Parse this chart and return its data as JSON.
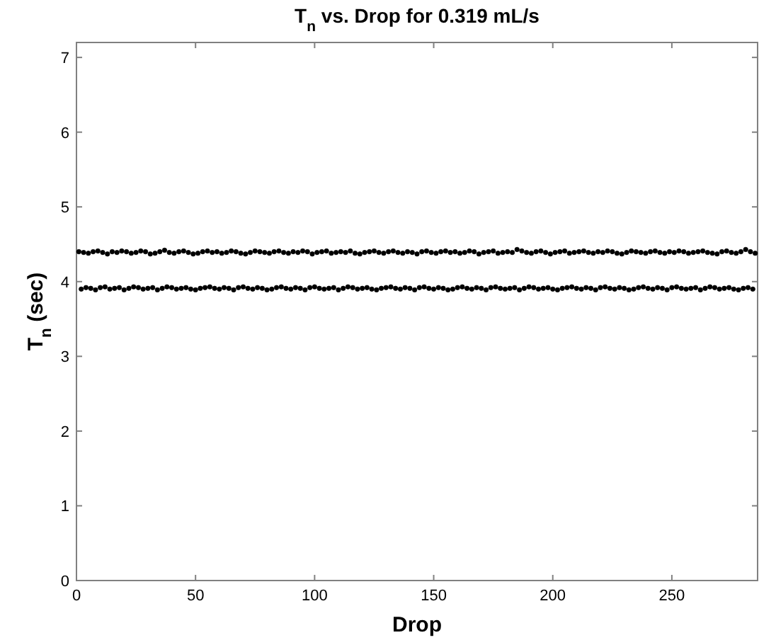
{
  "chart_data": {
    "type": "scatter",
    "title": "T$_{n}$ vs. Drop for 0.319 mL/s",
    "xlabel": "Drop",
    "ylabel": "T$_{n}$ (sec)",
    "xlim": [
      0,
      286
    ],
    "ylim": [
      0,
      7.2
    ],
    "xticks": [
      0,
      50,
      100,
      150,
      200,
      250
    ],
    "yticks": [
      0,
      1,
      2,
      3,
      4,
      5,
      6,
      7
    ],
    "marker": "circle",
    "grid": false,
    "series": [
      {
        "color": "#000000",
        "x": [
          1,
          3,
          5,
          7,
          9,
          11,
          13,
          15,
          17,
          19,
          21,
          23,
          25,
          27,
          29,
          31,
          33,
          35,
          37,
          39,
          41,
          43,
          45,
          47,
          49,
          51,
          53,
          55,
          57,
          59,
          61,
          63,
          65,
          67,
          69,
          71,
          73,
          75,
          77,
          79,
          81,
          83,
          85,
          87,
          89,
          91,
          93,
          95,
          97,
          99,
          101,
          103,
          105,
          107,
          109,
          111,
          113,
          115,
          117,
          119,
          121,
          123,
          125,
          127,
          129,
          131,
          133,
          135,
          137,
          139,
          141,
          143,
          145,
          147,
          149,
          151,
          153,
          155,
          157,
          159,
          161,
          163,
          165,
          167,
          169,
          171,
          173,
          175,
          177,
          179,
          181,
          183,
          185,
          187,
          189,
          191,
          193,
          195,
          197,
          199,
          201,
          203,
          205,
          207,
          209,
          211,
          213,
          215,
          217,
          219,
          221,
          223,
          225,
          227,
          229,
          231,
          233,
          235,
          237,
          239,
          241,
          243,
          245,
          247,
          249,
          251,
          253,
          255,
          257,
          259,
          261,
          263,
          265,
          267,
          269,
          271,
          273,
          275,
          277,
          279,
          281,
          283,
          285
        ],
        "values": [
          4.4,
          4.39,
          4.38,
          4.4,
          4.41,
          4.39,
          4.37,
          4.4,
          4.39,
          4.41,
          4.4,
          4.38,
          4.39,
          4.41,
          4.4,
          4.37,
          4.38,
          4.4,
          4.42,
          4.39,
          4.38,
          4.4,
          4.41,
          4.39,
          4.37,
          4.38,
          4.4,
          4.41,
          4.39,
          4.4,
          4.38,
          4.39,
          4.41,
          4.4,
          4.38,
          4.37,
          4.39,
          4.41,
          4.4,
          4.39,
          4.38,
          4.4,
          4.41,
          4.39,
          4.38,
          4.4,
          4.39,
          4.41,
          4.4,
          4.37,
          4.39,
          4.4,
          4.41,
          4.38,
          4.39,
          4.4,
          4.39,
          4.41,
          4.38,
          4.37,
          4.39,
          4.4,
          4.41,
          4.39,
          4.38,
          4.4,
          4.41,
          4.39,
          4.38,
          4.4,
          4.39,
          4.37,
          4.4,
          4.41,
          4.39,
          4.38,
          4.4,
          4.41,
          4.39,
          4.4,
          4.38,
          4.39,
          4.41,
          4.4,
          4.37,
          4.39,
          4.4,
          4.41,
          4.38,
          4.39,
          4.4,
          4.39,
          4.43,
          4.41,
          4.39,
          4.38,
          4.4,
          4.41,
          4.39,
          4.37,
          4.39,
          4.4,
          4.41,
          4.38,
          4.39,
          4.4,
          4.41,
          4.39,
          4.38,
          4.4,
          4.39,
          4.41,
          4.4,
          4.38,
          4.37,
          4.39,
          4.41,
          4.4,
          4.39,
          4.38,
          4.4,
          4.41,
          4.39,
          4.38,
          4.4,
          4.39,
          4.41,
          4.4,
          4.38,
          4.39,
          4.4,
          4.41,
          4.39,
          4.38,
          4.37,
          4.4,
          4.41,
          4.39,
          4.38,
          4.4,
          4.43,
          4.4,
          4.38
        ]
      },
      {
        "color": "#000000",
        "x": [
          2,
          4,
          6,
          8,
          10,
          12,
          14,
          16,
          18,
          20,
          22,
          24,
          26,
          28,
          30,
          32,
          34,
          36,
          38,
          40,
          42,
          44,
          46,
          48,
          50,
          52,
          54,
          56,
          58,
          60,
          62,
          64,
          66,
          68,
          70,
          72,
          74,
          76,
          78,
          80,
          82,
          84,
          86,
          88,
          90,
          92,
          94,
          96,
          98,
          100,
          102,
          104,
          106,
          108,
          110,
          112,
          114,
          116,
          118,
          120,
          122,
          124,
          126,
          128,
          130,
          132,
          134,
          136,
          138,
          140,
          142,
          144,
          146,
          148,
          150,
          152,
          154,
          156,
          158,
          160,
          162,
          164,
          166,
          168,
          170,
          172,
          174,
          176,
          178,
          180,
          182,
          184,
          186,
          188,
          190,
          192,
          194,
          196,
          198,
          200,
          202,
          204,
          206,
          208,
          210,
          212,
          214,
          216,
          218,
          220,
          222,
          224,
          226,
          228,
          230,
          232,
          234,
          236,
          238,
          240,
          242,
          244,
          246,
          248,
          250,
          252,
          254,
          256,
          258,
          260,
          262,
          264,
          266,
          268,
          270,
          272,
          274,
          276,
          278,
          280,
          282,
          284
        ],
        "values": [
          3.9,
          3.92,
          3.91,
          3.89,
          3.92,
          3.93,
          3.9,
          3.91,
          3.92,
          3.89,
          3.91,
          3.93,
          3.92,
          3.9,
          3.91,
          3.92,
          3.89,
          3.91,
          3.93,
          3.92,
          3.9,
          3.91,
          3.92,
          3.9,
          3.89,
          3.91,
          3.92,
          3.93,
          3.91,
          3.9,
          3.92,
          3.91,
          3.89,
          3.92,
          3.93,
          3.91,
          3.9,
          3.92,
          3.91,
          3.89,
          3.9,
          3.92,
          3.93,
          3.91,
          3.9,
          3.92,
          3.91,
          3.89,
          3.92,
          3.93,
          3.91,
          3.9,
          3.91,
          3.92,
          3.89,
          3.91,
          3.93,
          3.92,
          3.9,
          3.91,
          3.92,
          3.9,
          3.89,
          3.91,
          3.92,
          3.93,
          3.91,
          3.9,
          3.92,
          3.91,
          3.89,
          3.92,
          3.93,
          3.91,
          3.9,
          3.92,
          3.91,
          3.89,
          3.9,
          3.92,
          3.93,
          3.91,
          3.9,
          3.92,
          3.91,
          3.89,
          3.92,
          3.93,
          3.91,
          3.9,
          3.91,
          3.92,
          3.89,
          3.91,
          3.93,
          3.92,
          3.9,
          3.91,
          3.92,
          3.9,
          3.89,
          3.91,
          3.92,
          3.93,
          3.91,
          3.9,
          3.92,
          3.91,
          3.89,
          3.92,
          3.93,
          3.91,
          3.9,
          3.92,
          3.91,
          3.89,
          3.9,
          3.92,
          3.93,
          3.91,
          3.9,
          3.92,
          3.91,
          3.89,
          3.92,
          3.93,
          3.91,
          3.9,
          3.91,
          3.92,
          3.89,
          3.91,
          3.93,
          3.92,
          3.9,
          3.91,
          3.92,
          3.9,
          3.89,
          3.91,
          3.92,
          3.9
        ]
      }
    ]
  }
}
